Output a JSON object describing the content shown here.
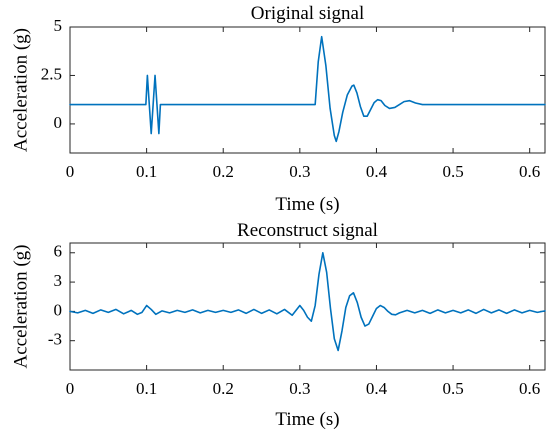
{
  "chart_data": [
    {
      "type": "line",
      "title": "Original signal",
      "xlabel": "Time (s)",
      "ylabel": "Acceleration (g)",
      "xlim": [
        0,
        0.62
      ],
      "ylim": [
        -1.5,
        5
      ],
      "xticks": [
        0,
        0.1,
        0.2,
        0.3,
        0.4,
        0.5,
        0.6
      ],
      "xtick_labels": [
        "0",
        "0.1",
        "0.2",
        "0.3",
        "0.4",
        "0.5",
        "0.6"
      ],
      "yticks": [
        0,
        2.5,
        5
      ],
      "ytick_labels": [
        "0",
        "2.5",
        "5"
      ],
      "color": "#0072BD",
      "series": [
        {
          "x": [
            0,
            0.099,
            0.101,
            0.1035,
            0.106,
            0.1085,
            0.111,
            0.1135,
            0.116,
            0.118,
            0.32,
            0.324,
            0.3285,
            0.334,
            0.3395,
            0.345,
            0.3475,
            0.351,
            0.356,
            0.362,
            0.368,
            0.3705,
            0.3745,
            0.379,
            0.3835,
            0.388,
            0.3925,
            0.397,
            0.4015,
            0.406,
            0.411,
            0.417,
            0.424,
            0.43,
            0.436,
            0.443,
            0.451,
            0.46,
            0.62
          ],
          "y": [
            1.0,
            1.0,
            2.5,
            1.0,
            -0.5,
            1.0,
            2.5,
            1.0,
            -0.5,
            1.0,
            1.0,
            3.2,
            4.5,
            3.0,
            0.8,
            -0.6,
            -0.9,
            -0.4,
            0.6,
            1.5,
            1.95,
            2.0,
            1.6,
            0.9,
            0.4,
            0.4,
            0.75,
            1.1,
            1.25,
            1.2,
            0.95,
            0.8,
            0.85,
            1.0,
            1.15,
            1.2,
            1.08,
            1.0,
            1.0
          ]
        }
      ]
    },
    {
      "type": "line",
      "title": "Reconstruct signal",
      "xlabel": "Time (s)",
      "ylabel": "Acceleration (g)",
      "xlim": [
        0,
        0.62
      ],
      "ylim": [
        -6,
        7
      ],
      "xticks": [
        0,
        0.1,
        0.2,
        0.3,
        0.4,
        0.5,
        0.6
      ],
      "xtick_labels": [
        "0",
        "0.1",
        "0.2",
        "0.3",
        "0.4",
        "0.5",
        "0.6"
      ],
      "yticks": [
        -3,
        0,
        3,
        6
      ],
      "ytick_labels": [
        "-3",
        "0",
        "3",
        "6"
      ],
      "color": "#0072BD",
      "series": [
        {
          "x": [
            0,
            0.01,
            0.02,
            0.03,
            0.04,
            0.05,
            0.06,
            0.07,
            0.08,
            0.088,
            0.094,
            0.1,
            0.106,
            0.112,
            0.12,
            0.13,
            0.14,
            0.15,
            0.16,
            0.17,
            0.18,
            0.19,
            0.2,
            0.21,
            0.22,
            0.23,
            0.24,
            0.25,
            0.26,
            0.27,
            0.28,
            0.29,
            0.295,
            0.3,
            0.305,
            0.31,
            0.315,
            0.32,
            0.325,
            0.33,
            0.335,
            0.34,
            0.345,
            0.35,
            0.355,
            0.36,
            0.365,
            0.37,
            0.375,
            0.38,
            0.385,
            0.39,
            0.395,
            0.4,
            0.405,
            0.41,
            0.415,
            0.42,
            0.425,
            0.43,
            0.44,
            0.45,
            0.46,
            0.47,
            0.48,
            0.49,
            0.5,
            0.51,
            0.52,
            0.53,
            0.54,
            0.55,
            0.56,
            0.57,
            0.58,
            0.59,
            0.6,
            0.61,
            0.62
          ],
          "y": [
            0,
            -0.15,
            0.1,
            -0.2,
            0.15,
            -0.1,
            0.2,
            -0.25,
            0.1,
            -0.3,
            -0.1,
            0.6,
            0.2,
            -0.3,
            0.05,
            -0.15,
            0.1,
            -0.1,
            0.15,
            -0.15,
            0.1,
            -0.1,
            0.1,
            -0.1,
            0.15,
            -0.2,
            0.2,
            -0.2,
            0.15,
            -0.25,
            0.2,
            -0.4,
            0.1,
            0.6,
            0.1,
            -0.6,
            -1.0,
            0.6,
            3.8,
            6.0,
            4.0,
            0.3,
            -2.8,
            -4.0,
            -2.0,
            0.4,
            1.6,
            1.9,
            0.9,
            -0.6,
            -1.5,
            -1.3,
            -0.5,
            0.3,
            0.6,
            0.4,
            0.0,
            -0.3,
            -0.35,
            -0.15,
            0.1,
            -0.15,
            0.1,
            -0.2,
            0.15,
            -0.15,
            0.1,
            -0.15,
            0.15,
            -0.2,
            0.2,
            -0.15,
            0.15,
            -0.2,
            0.15,
            -0.15,
            0.1,
            -0.1,
            0.05
          ]
        }
      ]
    }
  ]
}
